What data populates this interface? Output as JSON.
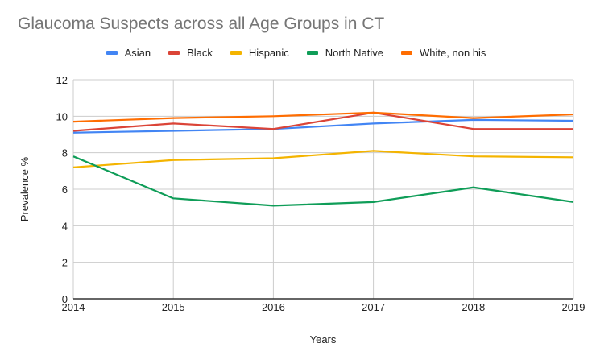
{
  "chart_data": {
    "type": "line",
    "title": "Glaucoma Suspects across all Age Groups in CT",
    "xlabel": "Years",
    "ylabel": "Prevalence %",
    "x": [
      2014,
      2015,
      2016,
      2017,
      2018,
      2019
    ],
    "x_tick_labels": [
      "2014",
      "2015",
      "2016",
      "2017",
      "2018",
      "2019"
    ],
    "ylim": [
      0,
      12
    ],
    "y_ticks": [
      0,
      2,
      4,
      6,
      8,
      10,
      12
    ],
    "y_tick_labels": [
      "0",
      "2",
      "4",
      "6",
      "8",
      "10",
      "12"
    ],
    "grid": true,
    "legend_position": "top",
    "series": [
      {
        "name": "Asian",
        "color": "#4285f4",
        "values": [
          9.1,
          9.2,
          9.3,
          9.6,
          9.8,
          9.75
        ]
      },
      {
        "name": "Black",
        "color": "#db4437",
        "values": [
          9.2,
          9.6,
          9.3,
          10.2,
          9.3,
          9.3
        ]
      },
      {
        "name": "Hispanic",
        "color": "#f4b400",
        "values": [
          7.2,
          7.6,
          7.7,
          8.1,
          7.8,
          7.75
        ]
      },
      {
        "name": "North Native",
        "color": "#0f9d58",
        "values": [
          7.8,
          5.5,
          5.1,
          5.3,
          6.1,
          5.3
        ]
      },
      {
        "name": "White, non his",
        "color": "#ff6d01",
        "values": [
          9.7,
          9.9,
          10.0,
          10.2,
          9.9,
          10.1
        ]
      }
    ]
  }
}
